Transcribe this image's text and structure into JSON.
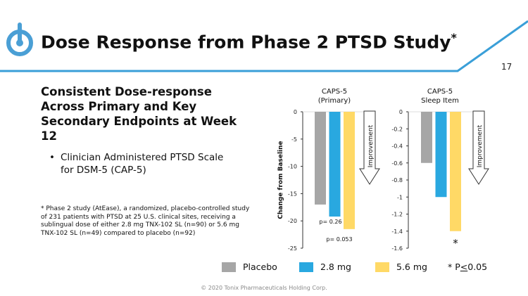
{
  "header": {
    "title": "Dose Response from Phase 2 PTSD Study",
    "title_marker": "*",
    "page_number": "17"
  },
  "colors": {
    "accent": "#3a9fd8",
    "placebo": "#a6a6a6",
    "dose_2_8": "#29a8e0",
    "dose_5_6": "#ffd966"
  },
  "left": {
    "heading": "Consistent Dose-response Across Primary and Key Secondary Endpoints at Week 12",
    "bullet": "Clinician Administered PTSD Scale for DSM-5 (CAP-5)",
    "bullet_marker": "•",
    "footnote": "* Phase 2 study (AtEase), a randomized, placebo-controlled study of 231 patients with PTSD at 25 U.S. clinical sites, receiving  a sublingual dose of either 2.8 mg TNX-102 SL (n=90) or 5.6 mg TNX-102 SL (n=49) compared to placebo (n=92)"
  },
  "chart_data": [
    {
      "type": "bar",
      "title": "CAPS-5\n(Primary)",
      "title_lines": [
        "CAPS-5",
        "(Primary)"
      ],
      "ylabel": "Change from Baseline",
      "ylim": [
        -25,
        0
      ],
      "yticks": [
        "0",
        "-5",
        "-10",
        "-15",
        "-20",
        "-25"
      ],
      "ytick_values": [
        0,
        -5,
        -10,
        -15,
        -20,
        -25
      ],
      "categories": [
        "Placebo",
        "2.8 mg",
        "5.6 mg"
      ],
      "values": [
        -17,
        -19.2,
        -21.5
      ],
      "annotations": [
        "",
        "p= 0.26",
        "p= 0.053"
      ],
      "arrow_label": "Improvement"
    },
    {
      "type": "bar",
      "title": "CAPS-5\nSleep Item",
      "title_lines": [
        "CAPS-5",
        "Sleep Item"
      ],
      "ylabel": "",
      "ylim": [
        -1.6,
        0
      ],
      "yticks": [
        "0",
        "-0.2",
        "-0.4",
        "-0.6",
        "-0.8",
        "-1",
        "-1.2",
        "-1.4",
        "-1.6"
      ],
      "ytick_values": [
        0,
        -0.2,
        -0.4,
        -0.6,
        -0.8,
        -1,
        -1.2,
        -1.4,
        -1.6
      ],
      "categories": [
        "Placebo",
        "2.8 mg",
        "5.6 mg"
      ],
      "values": [
        -0.6,
        -1.0,
        -1.4
      ],
      "annotations": [
        "",
        "",
        "*"
      ],
      "arrow_label": "Improvement"
    }
  ],
  "legend": {
    "items": [
      "Placebo",
      "2.8 mg",
      "5.6 mg"
    ],
    "significance": "* P<0.05",
    "sig_prefix": "* P",
    "sig_symbol": "<",
    "sig_value": "0.05"
  },
  "footer": {
    "copyright": "© 2020 Tonix Pharmaceuticals Holding Corp."
  }
}
